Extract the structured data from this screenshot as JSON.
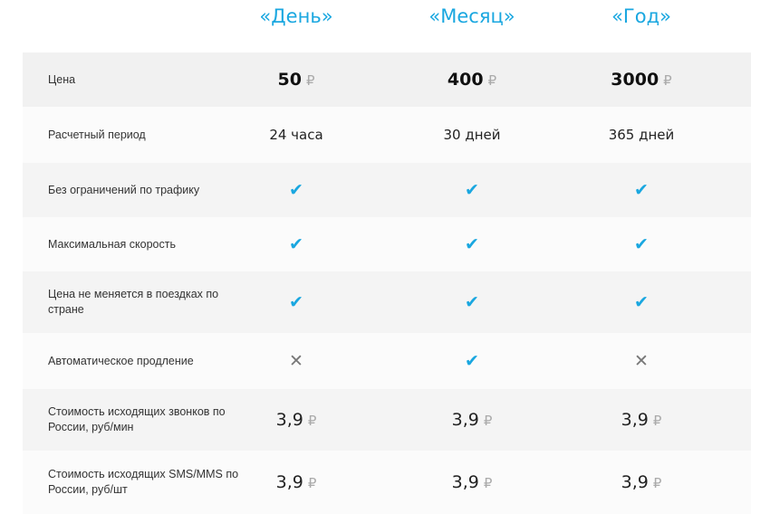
{
  "plans": [
    "«День»",
    "«Месяц»",
    "«Год»"
  ],
  "accent_color": "#1aa7e0",
  "currency_symbol": "₽",
  "rows": [
    {
      "label": "Цена",
      "type": "price",
      "values": [
        "50",
        "400",
        "3000"
      ]
    },
    {
      "label": "Расчетный период",
      "type": "text",
      "values": [
        "24 часа",
        "30 дней",
        "365 дней"
      ]
    },
    {
      "label": "Без ограничений по трафику",
      "type": "bool",
      "values": [
        true,
        true,
        true
      ]
    },
    {
      "label": "Максимальная скорость",
      "type": "bool",
      "values": [
        true,
        true,
        true
      ]
    },
    {
      "label": "Цена не меняется в поездках по стране",
      "type": "bool",
      "values": [
        true,
        true,
        true
      ]
    },
    {
      "label": "Автоматическое продление",
      "type": "bool",
      "values": [
        false,
        true,
        false
      ]
    },
    {
      "label": "Стоимость исходящих звонков по России, руб/мин",
      "type": "money",
      "values": [
        "3,9",
        "3,9",
        "3,9"
      ]
    },
    {
      "label": "Стоимость исходящих SMS/MMS по России, руб/шт",
      "type": "money",
      "values": [
        "3,9",
        "3,9",
        "3,9"
      ]
    }
  ]
}
